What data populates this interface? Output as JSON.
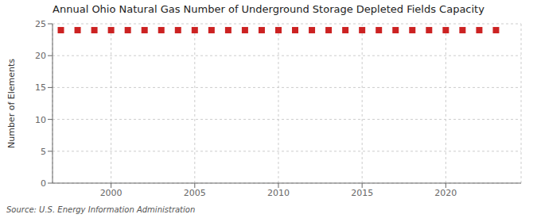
{
  "chart_data": {
    "type": "scatter",
    "title": "Annual Ohio Natural Gas Number of Underground Storage Depleted Fields Capacity",
    "y_label": "Number of Elements",
    "annotations": [
      "Source: U.S. Energy Information Administration"
    ],
    "x": [
      1997,
      1998,
      1999,
      2000,
      2001,
      2002,
      2003,
      2004,
      2005,
      2006,
      2007,
      2008,
      2009,
      2010,
      2011,
      2012,
      2013,
      2014,
      2015,
      2016,
      2017,
      2018,
      2019,
      2020,
      2021,
      2022,
      2023
    ],
    "values": [
      24,
      24,
      24,
      24,
      24,
      24,
      24,
      24,
      24,
      24,
      24,
      24,
      24,
      24,
      24,
      24,
      24,
      24,
      24,
      24,
      24,
      24,
      24,
      24,
      24,
      24,
      24
    ],
    "color": "#cc2222",
    "marker": "square",
    "xlim": [
      1996.5,
      2024.5
    ],
    "xticks": [
      2000,
      2005,
      2010,
      2015,
      2020
    ],
    "ylim": [
      0,
      25
    ],
    "yticks": [
      0,
      5,
      10,
      15,
      20,
      25
    ],
    "grid": true
  }
}
